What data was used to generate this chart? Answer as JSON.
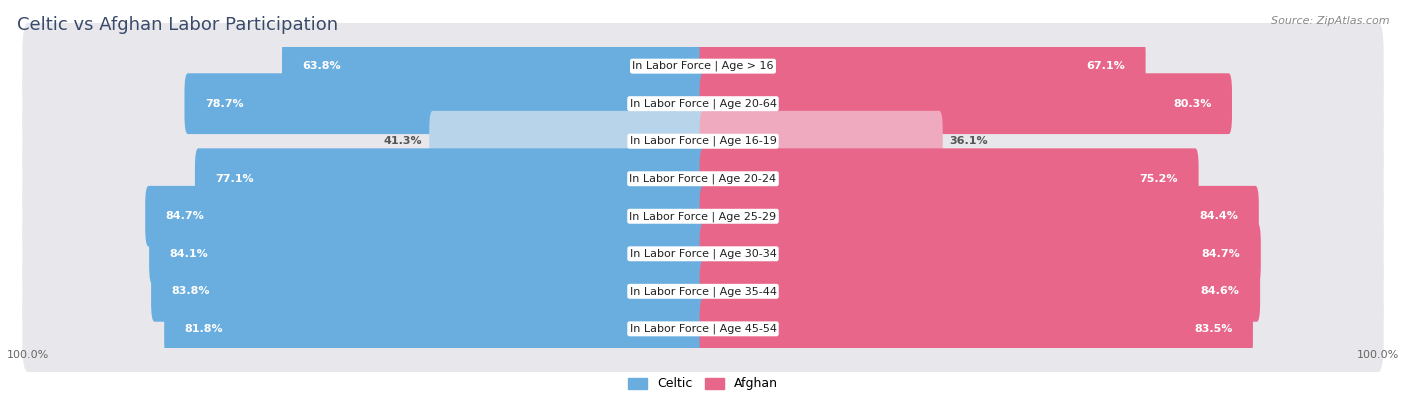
{
  "title": "Celtic vs Afghan Labor Participation",
  "source": "Source: ZipAtlas.com",
  "categories": [
    "In Labor Force | Age > 16",
    "In Labor Force | Age 20-64",
    "In Labor Force | Age 16-19",
    "In Labor Force | Age 20-24",
    "In Labor Force | Age 25-29",
    "In Labor Force | Age 30-34",
    "In Labor Force | Age 35-44",
    "In Labor Force | Age 45-54"
  ],
  "celtic_values": [
    63.8,
    78.7,
    41.3,
    77.1,
    84.7,
    84.1,
    83.8,
    81.8
  ],
  "afghan_values": [
    67.1,
    80.3,
    36.1,
    75.2,
    84.4,
    84.7,
    84.6,
    83.5
  ],
  "celtic_color": "#6aaee0",
  "celtic_light_color": "#b8d4ea",
  "afghan_color": "#e8668a",
  "afghan_light_color": "#f0aabf",
  "row_bg_color": "#e8e8ec",
  "max_value": 100.0,
  "title_fontsize": 13,
  "label_fontsize": 8,
  "value_fontsize": 8,
  "legend_fontsize": 9,
  "background_color": "#ffffff",
  "title_color": "#3a4a6a",
  "source_color": "#888888",
  "value_color_inside": "#ffffff",
  "value_color_outside": "#555555"
}
